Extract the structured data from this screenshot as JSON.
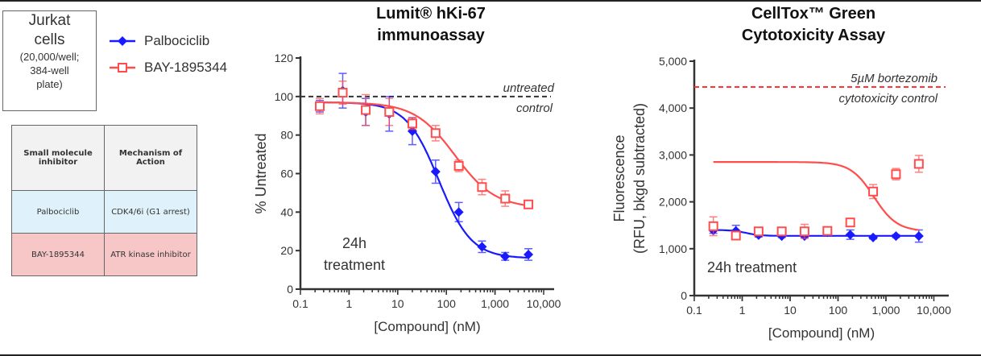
{
  "info_box": {
    "line1": "Jurkat",
    "line2": "cells",
    "line3": "(20,000/well;",
    "line4": "384-well",
    "line5": "plate)"
  },
  "legend": [
    {
      "label": "Palbociclib",
      "color": "#1a1aff"
    },
    {
      "label": "BAY-1895344",
      "color": "#ff4d4d"
    }
  ],
  "table": {
    "headers": [
      "Small molecule inhibitor",
      "Mechanism of Action"
    ],
    "rows": [
      [
        "Palbociclib",
        "CDK4/6i (G1 arrest)"
      ],
      [
        "BAY-1895344",
        "ATR kinase inhibitor"
      ]
    ]
  },
  "chart_data": [
    {
      "type": "line",
      "title_line1": "Lumit® hKi-67",
      "title_line2": "immunoassay",
      "xlabel": "[Compound] (nM)",
      "ylabel": "% Untreated",
      "xscale": "log",
      "xlim": [
        0.1,
        10000
      ],
      "ylim": [
        0,
        120
      ],
      "xticks": [
        "0.1",
        "1",
        "10",
        "100",
        "1,000",
        "10,000"
      ],
      "yticks": [
        "0",
        "20",
        "40",
        "60",
        "80",
        "100",
        "120"
      ],
      "x": [
        0.25,
        0.74,
        2.2,
        6.7,
        20,
        60,
        180,
        540,
        1620,
        4860
      ],
      "reference_line": {
        "y": 100,
        "label1": "untreated",
        "label2": "control"
      },
      "annotation1": "24h",
      "annotation2": "treatment",
      "series": [
        {
          "name": "Palbociclib",
          "values": [
            95,
            103,
            92,
            91,
            82,
            61,
            40,
            22,
            17,
            18
          ],
          "errors": [
            3,
            9,
            7,
            9,
            7,
            6,
            5,
            3,
            2,
            3
          ],
          "fit": {
            "top": 97,
            "bottom": 16,
            "ec50": 70,
            "hill": 1.3
          }
        },
        {
          "name": "BAY-1895344",
          "values": [
            95,
            102,
            93,
            92,
            86,
            81,
            64,
            53,
            47,
            44
          ],
          "errors": [
            4,
            6,
            8,
            7,
            3,
            4,
            3,
            4,
            4,
            2
          ],
          "fit": {
            "top": 97,
            "bottom": 42,
            "ec50": 150,
            "hill": 1.05
          }
        }
      ]
    },
    {
      "type": "line",
      "title_line1": "CellTox™ Green",
      "title_line2": "Cytotoxicity Assay",
      "xlabel": "[Compound] (nM)",
      "ylabel1": "Fluorescence",
      "ylabel2": "(RFU, bkgd subtracted)",
      "xscale": "log",
      "xlim": [
        0.1,
        10000
      ],
      "ylim": [
        0,
        5000
      ],
      "xticks": [
        "0.1",
        "1",
        "10",
        "100",
        "1,000",
        "10,000"
      ],
      "yticks": [
        "0",
        "1,000",
        "2,000",
        "3,000",
        "4,000",
        "5,000"
      ],
      "x": [
        0.25,
        0.74,
        2.2,
        6.7,
        20,
        60,
        180,
        540,
        1620,
        4860
      ],
      "reference_line": {
        "y": 4450,
        "label1": "5µM bortezomib",
        "label2": "cytotoxicity control"
      },
      "annotation1": "24h treatment",
      "series": [
        {
          "name": "Palbociclib",
          "values": [
            1390,
            1380,
            1290,
            1270,
            1270,
            1350,
            1300,
            1240,
            1270,
            1270
          ],
          "errors": [
            60,
            120,
            40,
            30,
            30,
            60,
            100,
            30,
            30,
            130
          ],
          "fit": {
            "top": 1400,
            "bottom": 1275,
            "ec50": 1.2,
            "hill": 3
          }
        },
        {
          "name": "BAY-1895344",
          "values": [
            1480,
            1280,
            1370,
            1370,
            1370,
            1380,
            1560,
            2220,
            2590,
            2810
          ],
          "errors": [
            200,
            60,
            50,
            60,
            150,
            60,
            80,
            150,
            120,
            180
          ],
          "fit": {
            "top": 2850,
            "bottom": 1370,
            "ec50": 560,
            "hill": 1.8
          }
        }
      ]
    }
  ]
}
